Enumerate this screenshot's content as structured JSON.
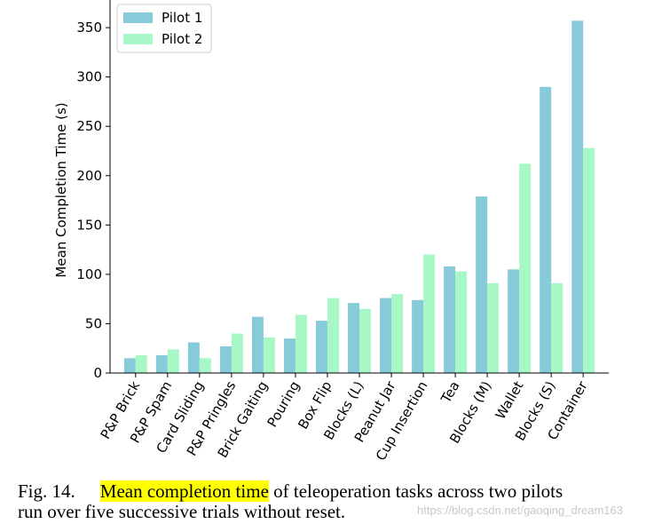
{
  "chart_data": {
    "type": "bar",
    "title": "",
    "xlabel": "",
    "ylabel": "Mean Completion Time (s)",
    "ylim": [
      0,
      378
    ],
    "yticks": [
      0,
      50,
      100,
      150,
      200,
      250,
      300,
      350
    ],
    "categories": [
      "P&P Brick",
      "P&P Spam",
      "Card Sliding",
      "P&P Pringles",
      "Brick Gaiting",
      "Pouring",
      "Box Flip",
      "Blocks (L)",
      "Peanut Jar",
      "Cup Insertion",
      "Tea",
      "Blocks (M)",
      "Wallet",
      "Blocks (S)",
      "Container"
    ],
    "series": [
      {
        "name": "Pilot 1",
        "color": "#87cbdb",
        "values": [
          15,
          18,
          31,
          27,
          57,
          35,
          53,
          71,
          76,
          74,
          108,
          179,
          105,
          290,
          357
        ]
      },
      {
        "name": "Pilot 2",
        "color": "#a7f7c7",
        "values": [
          18,
          24,
          15,
          40,
          36,
          59,
          76,
          65,
          80,
          120,
          103,
          91,
          212,
          91,
          228
        ]
      }
    ],
    "legend": "top-left",
    "grid": false
  },
  "caption": {
    "label": "Fig. 14.",
    "highlight": "Mean completion time",
    "rest_line1": " of teleoperation tasks across two pilots",
    "rest_line2": "run over five successive trials without reset."
  },
  "watermark": "https://blog.csdn.net/gaoqing_dream163"
}
